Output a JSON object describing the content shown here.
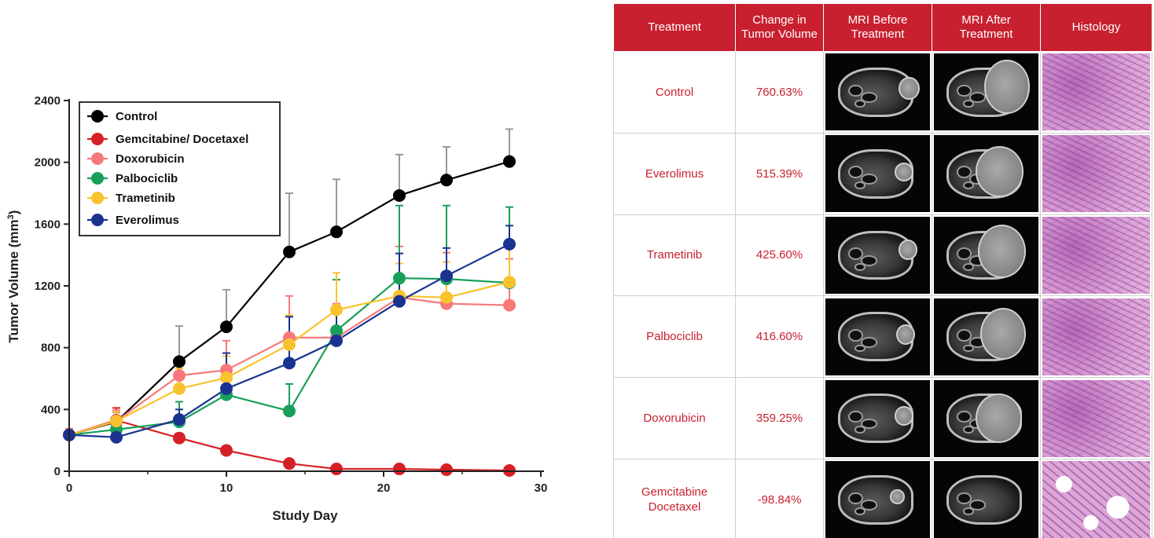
{
  "chart_data": {
    "type": "line",
    "xlabel": "Study Day",
    "ylabel": "Tumor Volume (mm3)",
    "ylabel_main": "Tumor Volume (mm",
    "ylabel_sup": "3",
    "ylabel_close": ")",
    "xlim": [
      0,
      30
    ],
    "ylim": [
      0,
      2400
    ],
    "x_ticks": [
      0,
      10,
      20,
      30
    ],
    "y_ticks": [
      0,
      400,
      800,
      1200,
      1600,
      2000,
      2400
    ],
    "x_tick_labels": [
      "0",
      "10",
      "20",
      "30"
    ],
    "y_tick_labels": [
      "0",
      "400",
      "800",
      "1200",
      "1600",
      "2000",
      "2400"
    ],
    "legend_position": "top-left",
    "grid": false,
    "series": [
      {
        "name": "Control",
        "color": "#000000",
        "x": [
          0,
          3,
          7,
          10,
          14,
          17,
          21,
          24,
          28
        ],
        "y": [
          235,
          320,
          710,
          935,
          1420,
          1550,
          1785,
          1885,
          2005
        ],
        "err": [
          40,
          60,
          230,
          240,
          380,
          340,
          265,
          215,
          210
        ]
      },
      {
        "name": "Gemcitabine/ Docetaxel",
        "color": "#d62027",
        "x": [
          0,
          3,
          7,
          10,
          14,
          17,
          21,
          24,
          28
        ],
        "y": [
          235,
          330,
          215,
          135,
          50,
          15,
          15,
          10,
          5
        ],
        "err": [
          30,
          80,
          30,
          20,
          10,
          5,
          5,
          5,
          3
        ]
      },
      {
        "name": "Doxorubicin",
        "color": "#f7797a",
        "x": [
          0,
          3,
          7,
          10,
          14,
          17,
          21,
          24,
          28
        ],
        "y": [
          235,
          325,
          620,
          655,
          865,
          865,
          1125,
          1085,
          1075
        ],
        "err": [
          40,
          70,
          110,
          190,
          270,
          220,
          330,
          330,
          300
        ]
      },
      {
        "name": "Palbociclib",
        "color": "#18a05a",
        "x": [
          0,
          3,
          7,
          10,
          14,
          17,
          21,
          24,
          28
        ],
        "y": [
          235,
          270,
          320,
          495,
          390,
          910,
          1250,
          1245,
          1220
        ],
        "err": [
          30,
          40,
          130,
          140,
          175,
          330,
          470,
          475,
          490
        ]
      },
      {
        "name": "Trametinib",
        "color": "#fbc22f",
        "x": [
          0,
          3,
          7,
          10,
          14,
          17,
          21,
          24,
          28
        ],
        "y": [
          235,
          325,
          535,
          605,
          820,
          1045,
          1135,
          1125,
          1225
        ],
        "err": [
          30,
          60,
          130,
          140,
          190,
          240,
          210,
          230,
          240
        ]
      },
      {
        "name": "Everolimus",
        "color": "#1a3390",
        "x": [
          0,
          3,
          7,
          10,
          14,
          17,
          21,
          24,
          28
        ],
        "y": [
          235,
          220,
          335,
          535,
          700,
          845,
          1100,
          1265,
          1470
        ],
        "err": [
          20,
          20,
          65,
          230,
          300,
          220,
          310,
          180,
          120
        ]
      }
    ]
  },
  "table": {
    "headers": [
      "Treatment",
      "Change in Tumor Volume",
      "MRI Before Treatment",
      "MRI After Treatment",
      "Histology"
    ],
    "header_lines": [
      [
        "Treatment"
      ],
      [
        "Change in",
        "Tumor Volume"
      ],
      [
        "MRI Before",
        "Treatment"
      ],
      [
        "MRI After",
        "Treatment"
      ],
      [
        "Histology"
      ]
    ],
    "rows": [
      {
        "treatment": "Control",
        "change": "760.63%"
      },
      {
        "treatment": "Everolimus",
        "change": "515.39%"
      },
      {
        "treatment": "Trametinib",
        "change": "425.60%"
      },
      {
        "treatment": "Palbociclib",
        "change": "416.60%"
      },
      {
        "treatment": "Doxorubicin",
        "change": "359.25%"
      },
      {
        "treatment_lines": [
          "Gemcitabine",
          "Docetaxel"
        ],
        "change": "-98.84%"
      }
    ],
    "header_color": "#c8202f"
  }
}
